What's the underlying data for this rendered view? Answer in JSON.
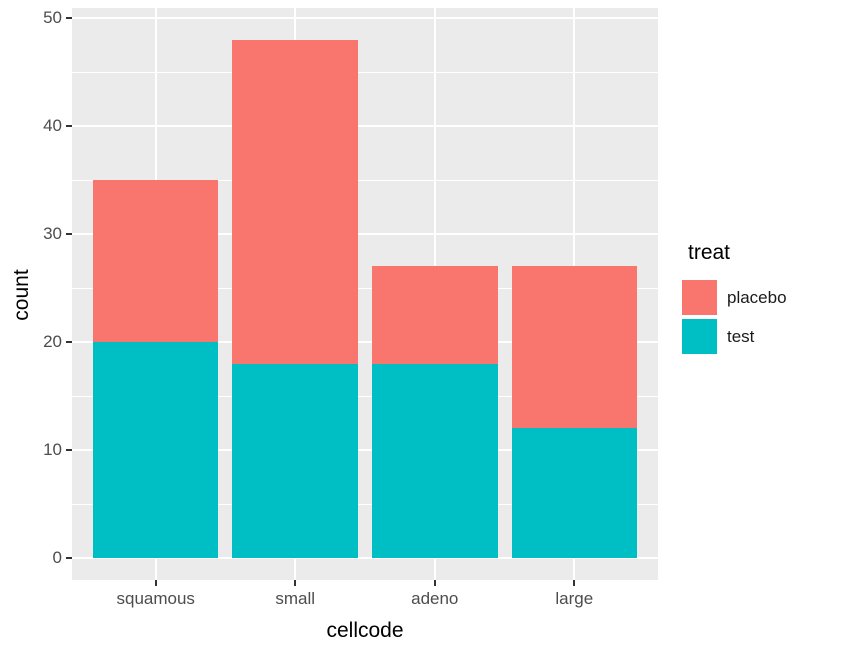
{
  "chart_data": {
    "type": "bar",
    "stacked": true,
    "title": "",
    "xlabel": "cellcode",
    "ylabel": "count",
    "categories": [
      "squamous",
      "small",
      "adeno",
      "large"
    ],
    "series": [
      {
        "name": "placebo",
        "color": "#F8766D",
        "values": [
          15,
          30,
          9,
          15
        ]
      },
      {
        "name": "test",
        "color": "#00BFC4",
        "values": [
          20,
          18,
          18,
          12
        ]
      }
    ],
    "stack_totals": [
      35,
      48,
      27,
      27
    ],
    "ylim": [
      0,
      50
    ],
    "yticks": [
      0,
      10,
      20,
      30,
      40,
      50
    ],
    "yticks_minor": [
      5,
      15,
      25,
      35,
      45
    ],
    "legend": {
      "title": "treat",
      "position": "right",
      "entries": [
        "placebo",
        "test"
      ]
    },
    "style": {
      "panel_bg": "#EBEBEB",
      "grid_color": "#FFFFFF",
      "tick_label_color": "#4D4D4D",
      "title_color": "#000000",
      "tick_mark_color": "#333333"
    }
  }
}
